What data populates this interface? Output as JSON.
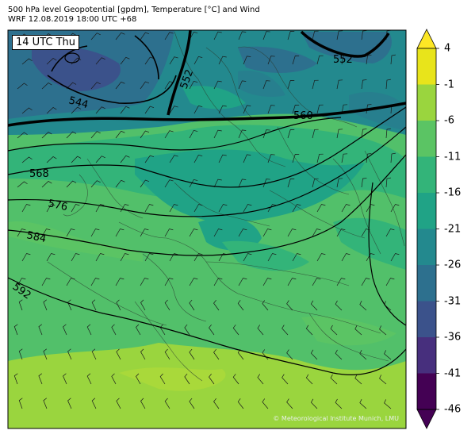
{
  "header": {
    "line1": "500 hPa level Geopotential [gpdm], Temperature [°C] and Wind",
    "line2": "WRF 12.08.2019 18:00 UTC +68"
  },
  "time_tag": "14 UTC Thu",
  "credit": "© Meteorological Institute Munich, LMU",
  "colorbar": {
    "ticks": [
      "4",
      "-1",
      "-6",
      "-11",
      "-16",
      "-21",
      "-26",
      "-31",
      "-36",
      "-41",
      "-46"
    ],
    "colors": [
      "#fde725",
      "#a0da39",
      "#4ac16d",
      "#1fa187",
      "#277f8e",
      "#365c8d",
      "#46327e",
      "#440154"
    ],
    "bands": [
      {
        "from": 4,
        "to": -1,
        "color": "#e8e41b"
      },
      {
        "from": -1,
        "to": -6,
        "color": "#9ad53e"
      },
      {
        "from": -6,
        "to": -11,
        "color": "#5bc464"
      },
      {
        "from": -11,
        "to": -16,
        "color": "#33b479"
      },
      {
        "from": -16,
        "to": -21,
        "color": "#20a386"
      },
      {
        "from": -21,
        "to": -26,
        "color": "#23898e"
      },
      {
        "from": -26,
        "to": -31,
        "color": "#2d708e"
      },
      {
        "from": -31,
        "to": -36,
        "color": "#3b528b"
      },
      {
        "from": -36,
        "to": -41,
        "color": "#472f7d"
      },
      {
        "from": -41,
        "to": -46,
        "color": "#440154"
      }
    ]
  },
  "contour_labels": [
    "544",
    "552",
    "560",
    "568",
    "576",
    "584",
    "592",
    "552"
  ]
}
